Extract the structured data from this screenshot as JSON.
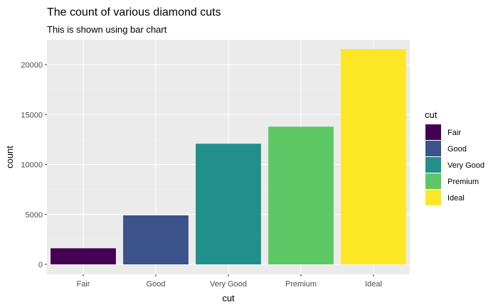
{
  "chart_data": {
    "type": "bar",
    "title": "The count of various diamond cuts",
    "subtitle": "This is shown using bar chart",
    "xlabel": "cut",
    "ylabel": "count",
    "categories": [
      "Fair",
      "Good",
      "Very Good",
      "Premium",
      "Ideal"
    ],
    "values": [
      1610,
      4906,
      12082,
      13791,
      21551
    ],
    "colors": [
      "#440154",
      "#3B528B",
      "#21908C",
      "#5DC863",
      "#FDE725"
    ],
    "ylim": [
      0,
      22600
    ],
    "yticks": [
      0,
      5000,
      10000,
      15000,
      20000
    ],
    "ytick_labels": [
      "0",
      "5000",
      "10000",
      "15000",
      "20000"
    ],
    "grid": true,
    "panel_background": "#EBEBEB",
    "legend": {
      "title": "cut",
      "position": "right",
      "entries": [
        "Fair",
        "Good",
        "Very Good",
        "Premium",
        "Ideal"
      ]
    }
  }
}
